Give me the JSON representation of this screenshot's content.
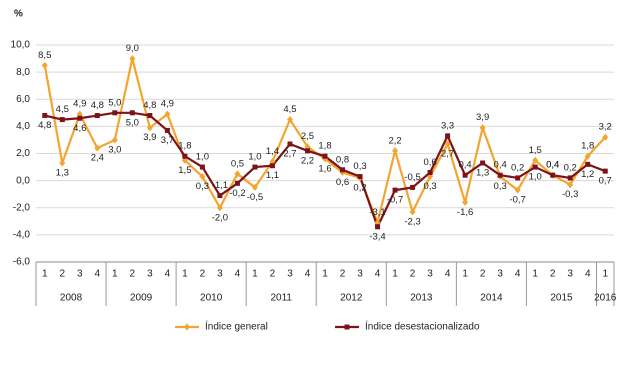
{
  "chart_data": {
    "type": "line",
    "y_label": "%",
    "categories": [
      "1",
      "2",
      "3",
      "4",
      "1",
      "2",
      "3",
      "4",
      "1",
      "2",
      "3",
      "4",
      "1",
      "2",
      "3",
      "4",
      "1",
      "2",
      "3",
      "4",
      "1",
      "2",
      "3",
      "4",
      "1",
      "2",
      "3",
      "4",
      "1",
      "2",
      "3",
      "4",
      "1"
    ],
    "years": [
      "2008",
      "2009",
      "2010",
      "2011",
      "2012",
      "2013",
      "2014",
      "2015",
      "2016"
    ],
    "ylim": [
      -6,
      10
    ],
    "yticks": [
      {
        "value": -6,
        "label": "-6,0"
      },
      {
        "value": -4,
        "label": "-4,0"
      },
      {
        "value": -2,
        "label": "-2,0"
      },
      {
        "value": 0,
        "label": "0,0"
      },
      {
        "value": 2,
        "label": "2,0"
      },
      {
        "value": 4,
        "label": "4,0"
      },
      {
        "value": 6,
        "label": "6,0"
      },
      {
        "value": 8,
        "label": "8,0"
      },
      {
        "value": 10,
        "label": "10,0"
      }
    ],
    "grid": true,
    "series": [
      {
        "name": "Índice general",
        "color": "#f2a531",
        "marker": "diamond",
        "values": [
          8.5,
          1.3,
          4.9,
          2.4,
          3.0,
          9.0,
          3.9,
          4.9,
          1.5,
          0.3,
          -2.0,
          0.5,
          -0.5,
          1.4,
          4.5,
          2.5,
          1.6,
          0.6,
          0.2,
          -3.1,
          2.2,
          -2.3,
          0.3,
          2.7,
          -1.6,
          3.9,
          0.3,
          -0.7,
          1.5,
          0.4,
          -0.3,
          1.8,
          3.2
        ],
        "value_labels": [
          "8,5",
          "1,3",
          "4,9",
          "2,4",
          "3,0",
          "9,0",
          "3,9",
          "4,9",
          "1,5",
          "0,3",
          "-2,0",
          "0,5",
          "-0,5",
          "1,4",
          "4,5",
          "2,5",
          "1,6",
          "0,6",
          "0,2",
          "-3,1",
          "2,2",
          "-2,3",
          "0,3",
          "2,7",
          "-1,6",
          "3,9",
          "0,3",
          "-0,7",
          "1,5",
          "0,4",
          "-0,3",
          "1,8",
          "3,2"
        ]
      },
      {
        "name": "Índice desestacionalizado",
        "color": "#7d1218",
        "marker": "square",
        "values": [
          4.8,
          4.5,
          4.6,
          4.8,
          5.0,
          5.0,
          4.8,
          3.7,
          1.8,
          1.0,
          -1.1,
          -0.2,
          1.0,
          1.1,
          2.7,
          2.2,
          1.8,
          0.8,
          0.3,
          -3.4,
          -0.7,
          -0.5,
          0.6,
          3.3,
          0.4,
          1.3,
          0.4,
          0.2,
          1.0,
          0.4,
          0.2,
          1.2,
          0.7
        ],
        "value_labels": [
          "4,8",
          "4,5",
          "4,6",
          "4,8",
          "5,0",
          "5,0",
          "4,8",
          "3,7",
          "1,8",
          "1,0",
          "-1,1",
          "-0,2",
          "1,0",
          "1,1",
          "2,7",
          "2,2",
          "1,8",
          "0,8",
          "0,3",
          "-3,4",
          "-0,7",
          "-0,5",
          "0,6",
          "3,3",
          "0,4",
          "1,3",
          "0,4",
          "0,2",
          "1,0",
          "0,4",
          "0,2",
          "1,2",
          "0,7"
        ]
      }
    ]
  }
}
